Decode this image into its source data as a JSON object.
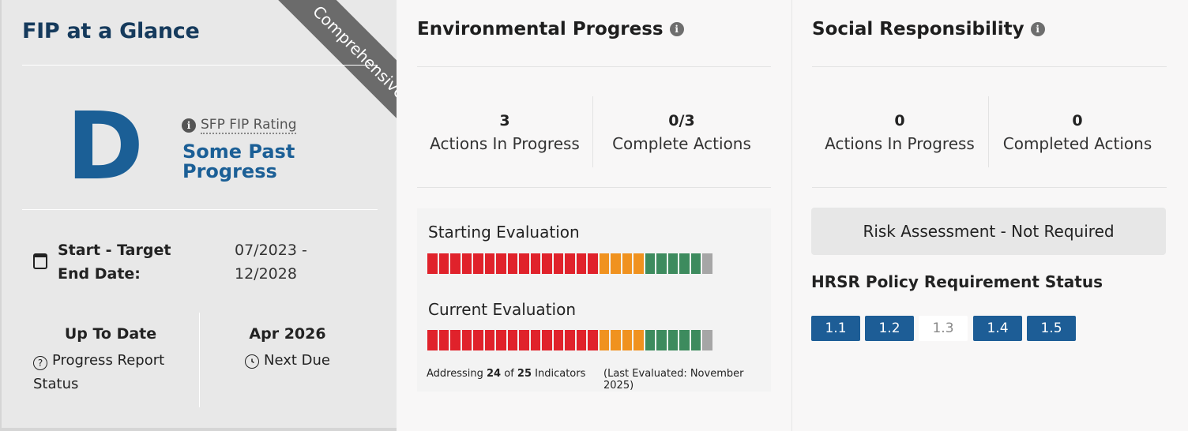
{
  "glance": {
    "title": "FIP at a Glance",
    "ribbon": "Comprehensive",
    "grade": "D",
    "rating_label": "SFP FIP Rating",
    "rating_name": "Some Past Progress",
    "dates_label": "Start - Target End Date:",
    "dates_value": "07/2023 - 12/2028",
    "status_value": "Up To Date",
    "status_label": "Progress Report Status",
    "due_value": "Apr 2026",
    "due_label": "Next Due"
  },
  "environmental": {
    "title": "Environmental Progress",
    "stats": [
      {
        "value": "3",
        "label": "Actions In Progress"
      },
      {
        "value": "0/3",
        "label": "Complete Actions"
      }
    ],
    "starting_title": "Starting Evaluation",
    "current_title": "Current Evaluation",
    "starting_bars": [
      "red",
      "red",
      "red",
      "red",
      "red",
      "red",
      "red",
      "red",
      "red",
      "red",
      "red",
      "red",
      "red",
      "red",
      "red",
      "orange",
      "orange",
      "orange",
      "orange",
      "green",
      "green",
      "green",
      "green",
      "green",
      "gray"
    ],
    "current_bars": [
      "red",
      "red",
      "red",
      "red",
      "red",
      "red",
      "red",
      "red",
      "red",
      "red",
      "red",
      "red",
      "red",
      "red",
      "red",
      "orange",
      "orange",
      "orange",
      "orange",
      "green",
      "green",
      "green",
      "green",
      "green",
      "gray"
    ],
    "footer_prefix": "Addressing",
    "indicators_addressed": "24",
    "footer_of": "of",
    "indicators_total": "25",
    "footer_suffix": "Indicators",
    "last_evaluated": "(Last Evaluated: November 2025)"
  },
  "social": {
    "title": "Social Responsibility",
    "stats": [
      {
        "value": "0",
        "label": "Actions In Progress"
      },
      {
        "value": "0",
        "label": "Completed Actions"
      }
    ],
    "risk_assessment": "Risk Assessment - Not Required",
    "hrsr_title": "HRSR Policy Requirement Status",
    "policies": [
      {
        "label": "1.1",
        "met": true
      },
      {
        "label": "1.2",
        "met": true
      },
      {
        "label": "1.3",
        "met": false
      },
      {
        "label": "1.4",
        "met": true
      },
      {
        "label": "1.5",
        "met": true
      }
    ]
  },
  "colors": {
    "red": "#e0222b",
    "orange": "#f0921f",
    "green": "#3d8b5e",
    "gray": "#a6a6a6",
    "brand_blue": "#1d5d96",
    "navy": "#153a5c"
  },
  "icons": [
    "info-icon",
    "calendar-icon",
    "question-circle-icon",
    "clock-icon"
  ]
}
